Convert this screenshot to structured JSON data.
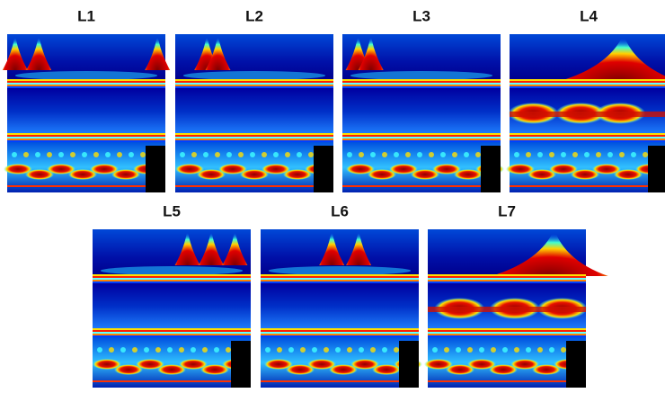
{
  "panels": [
    {
      "label": "L1"
    },
    {
      "label": "L2"
    },
    {
      "label": "L3"
    },
    {
      "label": "L4"
    },
    {
      "label": "L5"
    },
    {
      "label": "L6"
    },
    {
      "label": "L7"
    }
  ]
}
